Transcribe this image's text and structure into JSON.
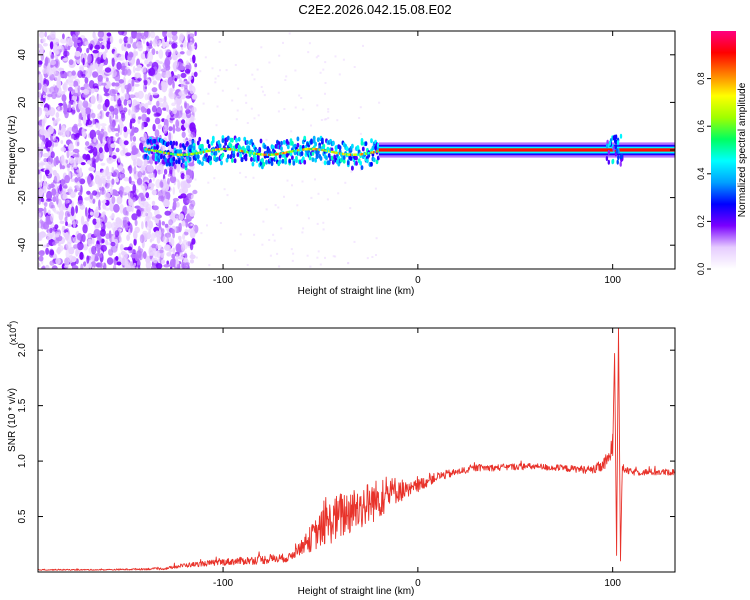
{
  "title": "C2E2.2026.042.15.08.E02",
  "chart_data": [
    {
      "type": "heatmap",
      "title": "C2E2.2026.042.15.08.E02",
      "xlabel": "Height of straight line (km)",
      "ylabel": "Frequency (Hz)",
      "xlim": [
        -195,
        132
      ],
      "ylim": [
        -50,
        50
      ],
      "x_ticks": [
        -100,
        0,
        100
      ],
      "x_tick_labels": [
        "-100",
        "0",
        "100"
      ],
      "y_ticks": [
        -40,
        -20,
        0,
        20,
        40
      ],
      "y_tick_labels": [
        "-40",
        "-20",
        "0",
        "20",
        "40"
      ],
      "noise_region_x": [
        -195,
        -120
      ],
      "signal_band": {
        "x_start": -140,
        "x_end": 132,
        "center_frequency_hz": 0,
        "notes": "Narrow band near 0 Hz: noisy and broad (about +/-5 Hz) from -140 to -20 km, then a clean high-amplitude line from -20 km onward, with a disturbance near 100 km"
      },
      "colorbar": {
        "label": "Normalized spectral amplitude",
        "range": [
          0.0,
          1.0
        ],
        "ticks": [
          0.0,
          0.2,
          0.4,
          0.6,
          0.8
        ],
        "tick_labels": [
          "0.0",
          "0.2",
          "0.4",
          "0.6",
          "0.8"
        ],
        "colormap": [
          "#ffffff",
          "#e6ccff",
          "#7a00ff",
          "#0000ff",
          "#00a0ff",
          "#00ffff",
          "#00ff60",
          "#a0ff00",
          "#ffff00",
          "#ff8000",
          "#ff0000",
          "#ff0080"
        ]
      }
    },
    {
      "type": "line",
      "xlabel": "Height of straight line (km)",
      "ylabel": "SNR (10 * v/v)",
      "y_multiplier_label": "(x10",
      "y_multiplier_exponent": "4",
      "xlim": [
        -195,
        132
      ],
      "ylim": [
        0,
        2.2
      ],
      "x_ticks": [
        -100,
        0,
        100
      ],
      "x_tick_labels": [
        "-100",
        "0",
        "100"
      ],
      "y_ticks": [
        0.5,
        1.0,
        1.5,
        2.0
      ],
      "y_tick_labels": [
        "0.5",
        "1.0",
        "1.5",
        "2.0"
      ],
      "series": [
        {
          "name": "SNR",
          "color": "#e8322a",
          "x": [
            -195,
            -160,
            -130,
            -120,
            -100,
            -80,
            -66,
            -62,
            -60,
            -55,
            -50,
            -45,
            -40,
            -35,
            -30,
            -25,
            -20,
            -15,
            -10,
            -5,
            0,
            5,
            10,
            15,
            20,
            25,
            30,
            40,
            50,
            60,
            70,
            80,
            90,
            95,
            98,
            100,
            101,
            102,
            103,
            104,
            105,
            106,
            110,
            120,
            132
          ],
          "y": [
            0.02,
            0.02,
            0.03,
            0.06,
            0.09,
            0.11,
            0.13,
            0.2,
            0.22,
            0.3,
            0.38,
            0.45,
            0.5,
            0.55,
            0.58,
            0.62,
            0.66,
            0.7,
            0.75,
            0.72,
            0.78,
            0.82,
            0.86,
            0.88,
            0.9,
            0.92,
            0.94,
            0.94,
            0.95,
            0.95,
            0.94,
            0.93,
            0.92,
            0.96,
            1.02,
            1.15,
            1.97,
            0.15,
            2.2,
            0.1,
            0.95,
            0.92,
            0.9,
            0.9,
            0.9
          ],
          "noise_amplitude": [
            0.005,
            0.005,
            0.01,
            0.02,
            0.03,
            0.04,
            0.04,
            0.06,
            0.06,
            0.12,
            0.16,
            0.2,
            0.22,
            0.22,
            0.2,
            0.2,
            0.18,
            0.15,
            0.12,
            0.08,
            0.06,
            0.05,
            0.04,
            0.04,
            0.03,
            0.03,
            0.03,
            0.03,
            0.03,
            0.03,
            0.03,
            0.03,
            0.04,
            0.06,
            0.08,
            0.1,
            0,
            0,
            0,
            0,
            0.05,
            0.03,
            0.03,
            0.03,
            0.03
          ]
        }
      ]
    }
  ]
}
